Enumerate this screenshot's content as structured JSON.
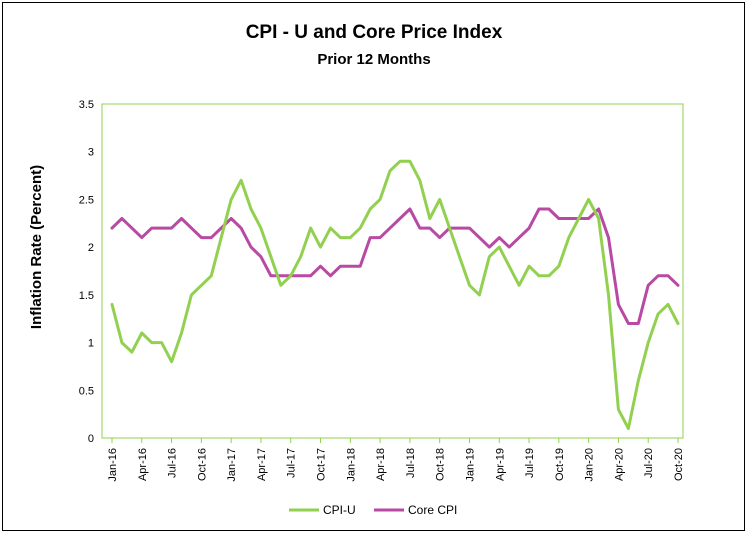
{
  "chart_data": {
    "type": "line",
    "title": "CPI - U and Core Price Index",
    "subtitle": "Prior 12 Months",
    "ylabel": "Inflation Rate (Percent)",
    "xlabel": "",
    "ylim": [
      0,
      3.5
    ],
    "yticks": [
      "0",
      "0.5",
      "1",
      "1.5",
      "2",
      "2.5",
      "3",
      "3.5"
    ],
    "xtick_labels": [
      "Jan-16",
      "Apr-16",
      "Jul-16",
      "Oct-16",
      "Jan-17",
      "Apr-17",
      "Jul-17",
      "Oct-17",
      "Jan-18",
      "Apr-18",
      "Jul-18",
      "Oct-18",
      "Jan-19",
      "Apr-19",
      "Jul-19",
      "Oct-19",
      "Jan-20",
      "Apr-20",
      "Jul-20",
      "Oct-20"
    ],
    "x": [
      "Jan-16",
      "Feb-16",
      "Mar-16",
      "Apr-16",
      "May-16",
      "Jun-16",
      "Jul-16",
      "Aug-16",
      "Sep-16",
      "Oct-16",
      "Nov-16",
      "Dec-16",
      "Jan-17",
      "Feb-17",
      "Mar-17",
      "Apr-17",
      "May-17",
      "Jun-17",
      "Jul-17",
      "Aug-17",
      "Sep-17",
      "Oct-17",
      "Nov-17",
      "Dec-17",
      "Jan-18",
      "Feb-18",
      "Mar-18",
      "Apr-18",
      "May-18",
      "Jun-18",
      "Jul-18",
      "Aug-18",
      "Sep-18",
      "Oct-18",
      "Nov-18",
      "Dec-18",
      "Jan-19",
      "Feb-19",
      "Mar-19",
      "Apr-19",
      "May-19",
      "Jun-19",
      "Jul-19",
      "Aug-19",
      "Sep-19",
      "Oct-19",
      "Nov-19",
      "Dec-19",
      "Jan-20",
      "Feb-20",
      "Mar-20",
      "Apr-20",
      "May-20",
      "Jun-20",
      "Jul-20",
      "Aug-20",
      "Sep-20",
      "Oct-20"
    ],
    "series": [
      {
        "name": "CPI-U",
        "color": "#92D050",
        "values": [
          1.4,
          1.0,
          0.9,
          1.1,
          1.0,
          1.0,
          0.8,
          1.1,
          1.5,
          1.6,
          1.7,
          2.1,
          2.5,
          2.7,
          2.4,
          2.2,
          1.9,
          1.6,
          1.7,
          1.9,
          2.2,
          2.0,
          2.2,
          2.1,
          2.1,
          2.2,
          2.4,
          2.5,
          2.8,
          2.9,
          2.9,
          2.7,
          2.3,
          2.5,
          2.2,
          1.9,
          1.6,
          1.5,
          1.9,
          2.0,
          1.8,
          1.6,
          1.8,
          1.7,
          1.7,
          1.8,
          2.1,
          2.3,
          2.5,
          2.3,
          1.5,
          0.3,
          0.1,
          0.6,
          1.0,
          1.3,
          1.4,
          1.2
        ]
      },
      {
        "name": "Core CPI",
        "color": "#B84AA3",
        "values": [
          2.2,
          2.3,
          2.2,
          2.1,
          2.2,
          2.2,
          2.2,
          2.3,
          2.2,
          2.1,
          2.1,
          2.2,
          2.3,
          2.2,
          2.0,
          1.9,
          1.7,
          1.7,
          1.7,
          1.7,
          1.7,
          1.8,
          1.7,
          1.8,
          1.8,
          1.8,
          2.1,
          2.1,
          2.2,
          2.3,
          2.4,
          2.2,
          2.2,
          2.1,
          2.2,
          2.2,
          2.2,
          2.1,
          2.0,
          2.1,
          2.0,
          2.1,
          2.2,
          2.4,
          2.4,
          2.3,
          2.3,
          2.3,
          2.3,
          2.4,
          2.1,
          1.4,
          1.2,
          1.2,
          1.6,
          1.7,
          1.7,
          1.6
        ]
      }
    ],
    "grid": false,
    "legend": "bottom"
  }
}
